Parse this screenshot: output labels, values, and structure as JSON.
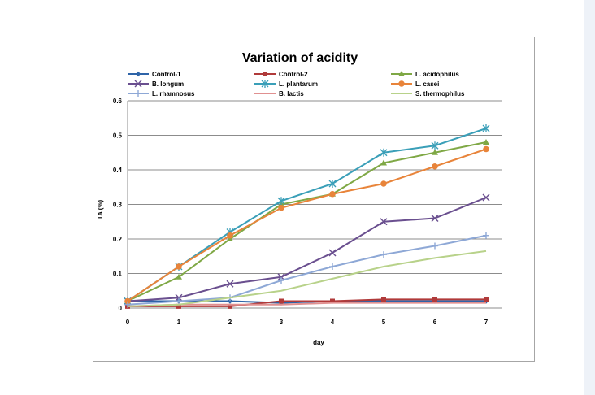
{
  "chart_data": {
    "type": "line",
    "title": "Variation of acidity",
    "xlabel": "day",
    "ylabel": "TA (%)",
    "x": [
      0,
      1,
      2,
      3,
      4,
      5,
      6,
      7
    ],
    "ylim": [
      0,
      0.6
    ],
    "yticks": [
      "0",
      "0.1",
      "0.2",
      "0.3",
      "0.4",
      "0.5",
      "0.6"
    ],
    "xticks": [
      "0",
      "1",
      "2",
      "3",
      "4",
      "5",
      "6",
      "7"
    ],
    "grid": "horizontal",
    "legend": "top",
    "series": [
      {
        "name": "Control-1",
        "color": "#2e64a8",
        "marker": "diamond",
        "values": [
          0.02,
          0.02,
          0.02,
          0.015,
          0.02,
          0.02,
          0.02,
          0.02
        ]
      },
      {
        "name": "Control-2",
        "color": "#b03a3a",
        "marker": "square",
        "values": [
          0.005,
          0.005,
          0.005,
          0.02,
          0.02,
          0.025,
          0.025,
          0.025
        ]
      },
      {
        "name": "L. acidophilus",
        "color": "#7fa845",
        "marker": "triangle",
        "values": [
          0.02,
          0.09,
          0.2,
          0.3,
          0.33,
          0.42,
          0.45,
          0.48
        ]
      },
      {
        "name": "B. longum",
        "color": "#6a4f8f",
        "marker": "x",
        "values": [
          0.02,
          0.03,
          0.07,
          0.09,
          0.16,
          0.25,
          0.26,
          0.32
        ]
      },
      {
        "name": "L. plantarum",
        "color": "#3a9fb8",
        "marker": "star",
        "values": [
          0.02,
          0.12,
          0.22,
          0.31,
          0.36,
          0.45,
          0.47,
          0.52
        ]
      },
      {
        "name": "L. casei",
        "color": "#e8843a",
        "marker": "circle",
        "values": [
          0.02,
          0.12,
          0.21,
          0.29,
          0.33,
          0.36,
          0.41,
          0.46
        ]
      },
      {
        "name": "L. rhamnosus",
        "color": "#8ea8d6",
        "marker": "plus",
        "values": [
          0.01,
          0.02,
          0.03,
          0.08,
          0.12,
          0.155,
          0.18,
          0.21
        ]
      },
      {
        "name": "B. lactis",
        "color": "#e09090",
        "marker": "none",
        "values": [
          0.005,
          0.01,
          0.01,
          0.01,
          0.015,
          0.015,
          0.015,
          0.015
        ]
      },
      {
        "name": "S. thermophilus",
        "color": "#b8d28a",
        "marker": "none",
        "values": [
          0.005,
          0.01,
          0.03,
          0.05,
          0.085,
          0.12,
          0.145,
          0.165
        ]
      }
    ]
  }
}
